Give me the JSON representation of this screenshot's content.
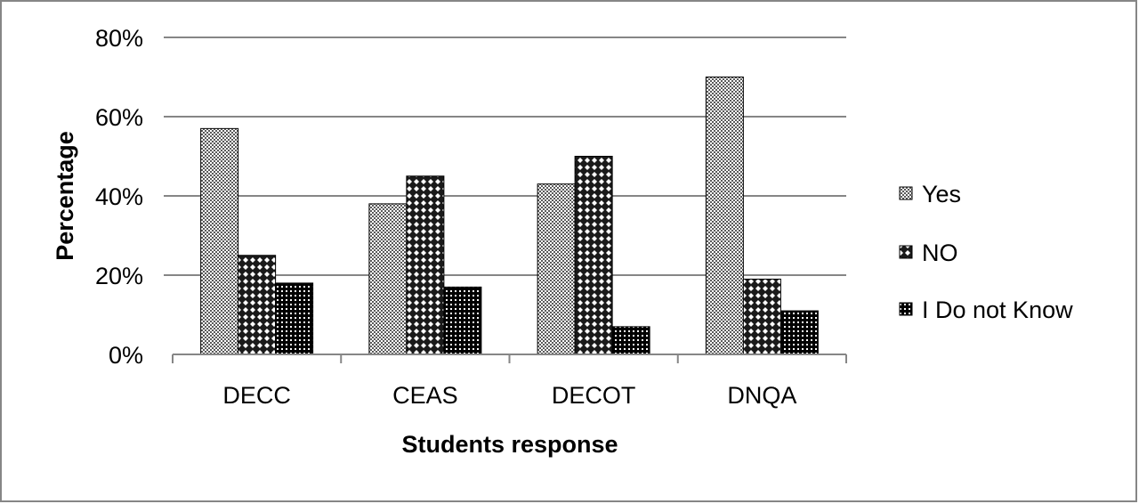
{
  "chart_data": {
    "type": "bar",
    "categories": [
      "DECC",
      "CEAS",
      "DECOT",
      "DNQA"
    ],
    "series": [
      {
        "name": "Yes",
        "values": [
          57,
          38,
          43,
          70
        ],
        "pattern": "light-checker"
      },
      {
        "name": "NO",
        "values": [
          25,
          45,
          50,
          19
        ],
        "pattern": "diamond-lattice"
      },
      {
        "name": "I Do not Know",
        "values": [
          18,
          17,
          7,
          11
        ],
        "pattern": "dark-grid"
      }
    ],
    "xlabel": "Students response",
    "ylabel": "Percentage",
    "ylim": [
      0,
      80
    ],
    "yticks": [
      0,
      20,
      40,
      60,
      80
    ],
    "ytick_suffix": "%",
    "grid": true,
    "legend_position": "right",
    "colors": {
      "gridline": "#868686",
      "bar_outline": "#000000",
      "frame": "#868686"
    }
  }
}
